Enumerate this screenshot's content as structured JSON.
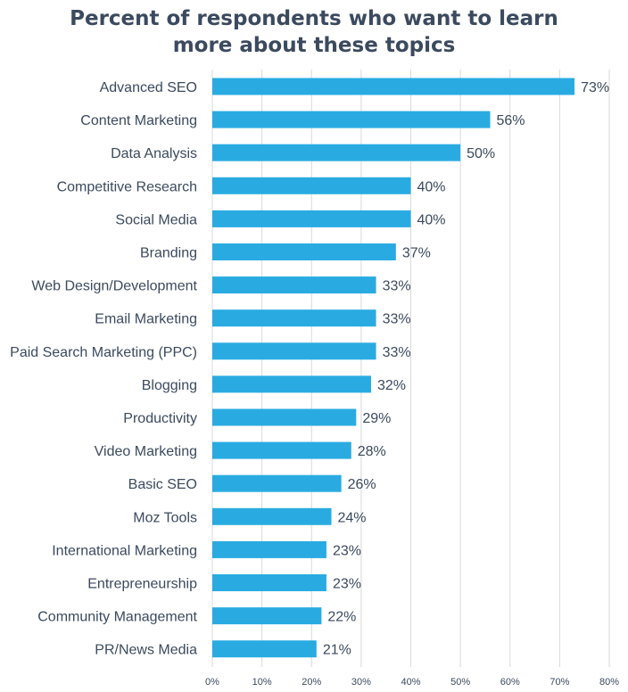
{
  "chart_data": {
    "type": "bar",
    "orientation": "horizontal",
    "title_lines": [
      "Percent of respondents who want to learn",
      "more about these topics"
    ],
    "categories": [
      "Advanced SEO",
      "Content Marketing",
      "Data Analysis",
      "Competitive Research",
      "Social Media",
      "Branding",
      "Web Design/Development",
      "Email Marketing",
      "Paid Search Marketing (PPC)",
      "Blogging",
      "Productivity",
      "Video Marketing",
      "Basic SEO",
      "Moz Tools",
      "International Marketing",
      "Entrepreneurship",
      "Community Management",
      "PR/News Media"
    ],
    "values": [
      73,
      56,
      50,
      40,
      40,
      37,
      33,
      33,
      33,
      32,
      29,
      28,
      26,
      24,
      23,
      23,
      22,
      21
    ],
    "value_labels": [
      "73%",
      "56%",
      "50%",
      "40%",
      "40%",
      "37%",
      "33%",
      "33%",
      "33%",
      "32%",
      "29%",
      "28%",
      "26%",
      "24%",
      "23%",
      "23%",
      "22%",
      "21%"
    ],
    "xlim": [
      0,
      80
    ],
    "xticks": [
      0,
      10,
      20,
      30,
      40,
      50,
      60,
      70,
      80
    ],
    "xtick_labels": [
      "0%",
      "10%",
      "20%",
      "30%",
      "40%",
      "50%",
      "60%",
      "70%",
      "80%"
    ],
    "grid": true,
    "bar_color": "#29abe2",
    "grid_color": "#d9d9d9",
    "text_color": "#3b4a5e"
  }
}
